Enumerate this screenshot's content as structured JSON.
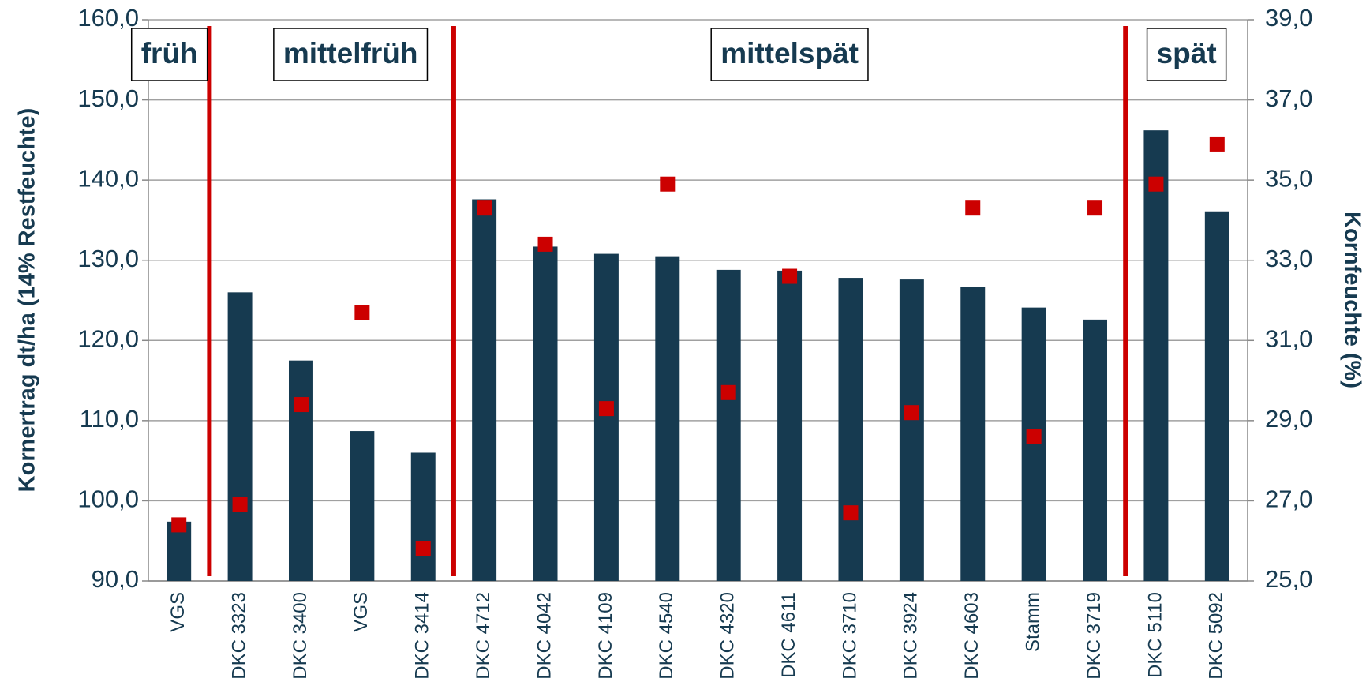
{
  "chart_data": {
    "type": "bar",
    "categories": [
      "VGS",
      "DKC 3323",
      "DKC 3400",
      "VGS",
      "DKC 3414",
      "DKC 4712",
      "DKC 4042",
      "DKC 4109",
      "DKC 4540",
      "DKC 4320",
      "DKC 4611",
      "DKC 3710",
      "DKC 3924",
      "DKC 4603",
      "Stamm",
      "DKC 3719",
      "DKC 5110",
      "DKC 5092"
    ],
    "groups": [
      "früh",
      "mittelfrüh",
      "mittelspät",
      "spät"
    ],
    "series": [
      {
        "name": "Kornertrag",
        "type": "bar",
        "color": "#163a50",
        "values": [
          97.4,
          126.0,
          117.5,
          108.7,
          106.0,
          137.6,
          131.7,
          130.8,
          130.5,
          128.8,
          128.7,
          127.8,
          127.6,
          126.7,
          124.1,
          122.6,
          146.2,
          136.1
        ]
      },
      {
        "name": "Kornfeuchte",
        "type": "scatter",
        "axis": "y2",
        "color": "#cc0000",
        "values": [
          26.4,
          26.9,
          29.4,
          31.7,
          25.8,
          34.3,
          33.4,
          29.3,
          34.9,
          29.7,
          32.6,
          26.7,
          29.2,
          34.3,
          28.6,
          34.3,
          34.9,
          35.9
        ]
      }
    ],
    "ylabel": "Kornertrag dt/ha (14% Restfeuchte)",
    "y2label": "Kornfeuchte (%)",
    "ylim": [
      90,
      160
    ],
    "yticks": [
      {
        "value": 90,
        "label": "90,0"
      },
      {
        "value": 100,
        "label": "100,0"
      },
      {
        "value": 110,
        "label": "110,0"
      },
      {
        "value": 120,
        "label": "120,0"
      },
      {
        "value": 130,
        "label": "130,0"
      },
      {
        "value": 140,
        "label": "140,0"
      },
      {
        "value": 150,
        "label": "150,0"
      },
      {
        "value": 160,
        "label": "160,0"
      }
    ],
    "y2lim": [
      25,
      39
    ],
    "y2ticks": [
      {
        "value": 25,
        "label": "25,0"
      },
      {
        "value": 27,
        "label": "27,0"
      },
      {
        "value": 29,
        "label": "29,0"
      },
      {
        "value": 31,
        "label": "31,0"
      },
      {
        "value": 33,
        "label": "33,0"
      },
      {
        "value": 35,
        "label": "35,0"
      },
      {
        "value": 37,
        "label": "37,0"
      },
      {
        "value": 39,
        "label": "39,0"
      }
    ],
    "grid": true
  }
}
